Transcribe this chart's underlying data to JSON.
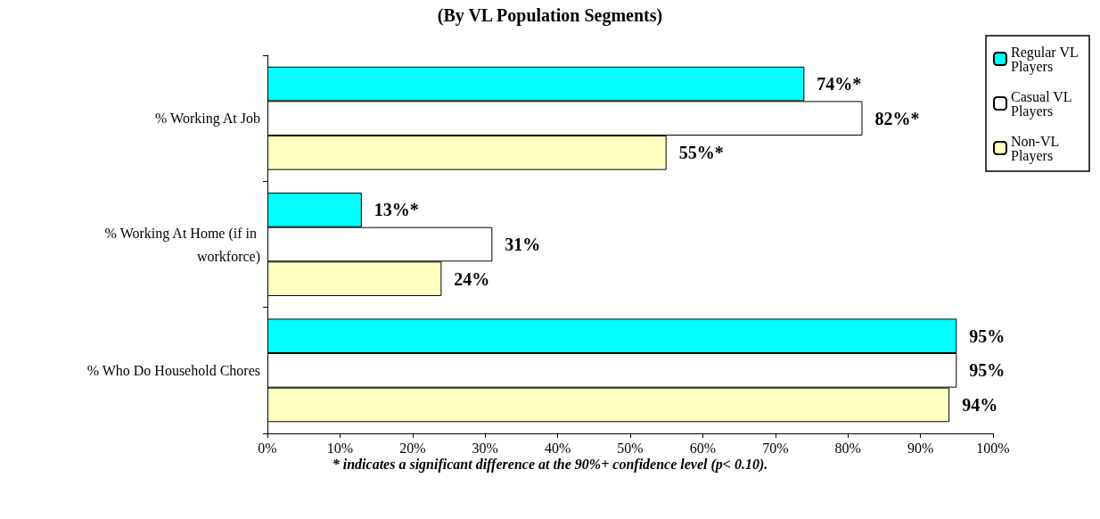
{
  "chart_data": {
    "type": "bar",
    "orientation": "horizontal",
    "title": "(By VL Population Segments)",
    "categories": [
      "% Working At Job",
      "% Working At Home (if in workforce)",
      "% Who Do Household Chores"
    ],
    "series": [
      {
        "name": "Regular VL Players",
        "color": "#00ffff",
        "values": [
          74,
          13,
          95
        ],
        "value_labels": [
          "74%*",
          "13%*",
          "95%"
        ]
      },
      {
        "name": "Casual VL Players",
        "color": "#ffffff",
        "values": [
          82,
          31,
          95
        ],
        "value_labels": [
          "82%*",
          "31%",
          "95%"
        ]
      },
      {
        "name": "Non-VL Players",
        "color": "#ffffc0",
        "values": [
          55,
          24,
          94
        ],
        "value_labels": [
          "55%*",
          "24%",
          "94%"
        ]
      }
    ],
    "xlim": [
      0,
      100
    ],
    "xticks": [
      {
        "value": 0,
        "label": "0%"
      },
      {
        "value": 10,
        "label": "10%"
      },
      {
        "value": 20,
        "label": "20%"
      },
      {
        "value": 30,
        "label": "30%"
      },
      {
        "value": 40,
        "label": "40%"
      },
      {
        "value": 50,
        "label": "50%"
      },
      {
        "value": 60,
        "label": "60%"
      },
      {
        "value": 70,
        "label": "70%"
      },
      {
        "value": 80,
        "label": "80%"
      },
      {
        "value": 90,
        "label": "90%"
      },
      {
        "value": 100,
        "label": "100%"
      }
    ],
    "annotations": [
      "* indicates a significant difference at the 90%+ confidence level (p< 0.10)."
    ],
    "grid": false,
    "legend": "top right"
  }
}
